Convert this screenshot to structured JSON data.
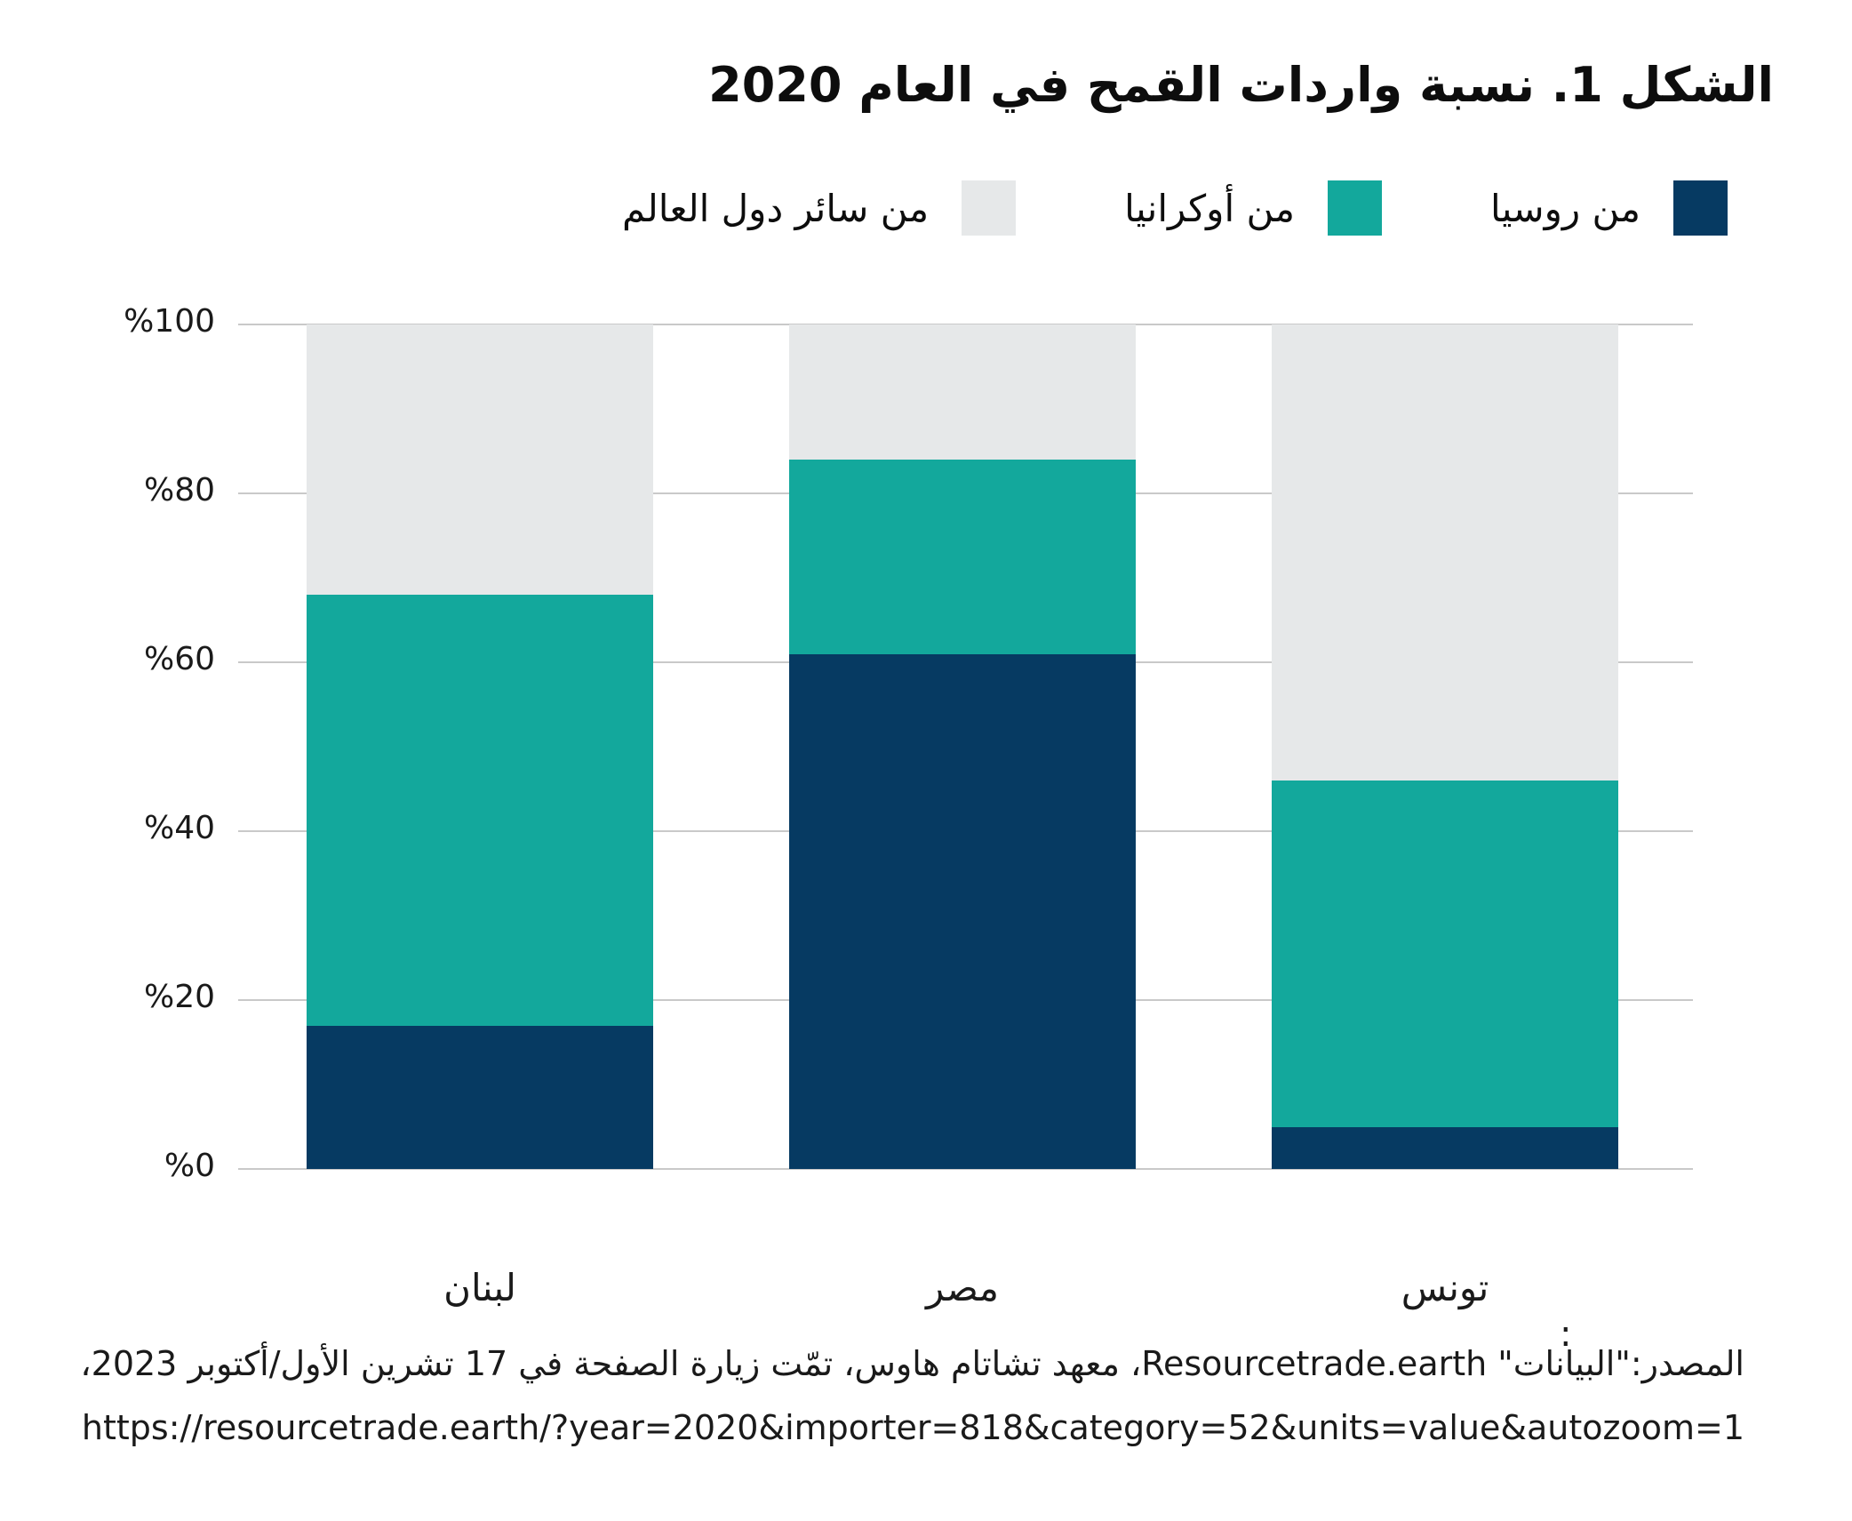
{
  "title": "الشكل 1. نسبة واردات القمح في العام 2020",
  "legend": {
    "items": [
      {
        "label": "من روسيا",
        "color": "#063a62"
      },
      {
        "label": "من أوكرانيا",
        "color": "#13a89c"
      },
      {
        "label": "من سائر دول العالم",
        "color": "#e6e8e9"
      }
    ]
  },
  "chart_data": {
    "type": "bar",
    "stacked": true,
    "unit": "percent",
    "title": "الشكل 1. نسبة واردات القمح في العام 2020",
    "categories": [
      "لبنان",
      "مصر",
      "تونس"
    ],
    "series": [
      {
        "name": "من روسيا",
        "color": "#063a62",
        "values": [
          17,
          61,
          5
        ]
      },
      {
        "name": "من أوكرانيا",
        "color": "#13a89c",
        "values": [
          51,
          23,
          41
        ]
      },
      {
        "name": "من سائر دول العالم",
        "color": "#e6e8e9",
        "values": [
          32,
          16,
          54
        ]
      }
    ],
    "cumulative_tops_percent": {
      "لبنان": {
        "من روسيا": 17,
        "من أوكرانيا": 68,
        "من سائر دول العالم": 100
      },
      "مصر": {
        "من روسيا": 61,
        "من أوكرانيا": 84,
        "من سائر دول العالم": 100
      },
      "تونس": {
        "من روسيا": 5,
        "من أوكرانيا": 46,
        "من سائر دول العالم": 100
      }
    },
    "ylim": [
      0,
      100
    ],
    "y_ticks": [
      {
        "value": 0,
        "label": "%0"
      },
      {
        "value": 20,
        "label": "%20"
      },
      {
        "value": 40,
        "label": "%40"
      },
      {
        "value": 60,
        "label": "%60"
      },
      {
        "value": 80,
        "label": "%80"
      },
      {
        "value": 100,
        "label": "%100"
      }
    ],
    "grid": "horizontal",
    "gridline_color": "#c9c9c9",
    "legend_position": "top-right"
  },
  "source": {
    "stray_mark": ":",
    "line1": "المصدر:\"البيانات\" Resourcetrade.earth، معهد تشاتام هاوس، تمّت زيارة الصفحة في 17 تشرين الأول/أكتوبر 2023،",
    "line2": "https://resourcetrade.earth/?year=2020&importer=818&category=52&units=value&autozoom=1"
  }
}
